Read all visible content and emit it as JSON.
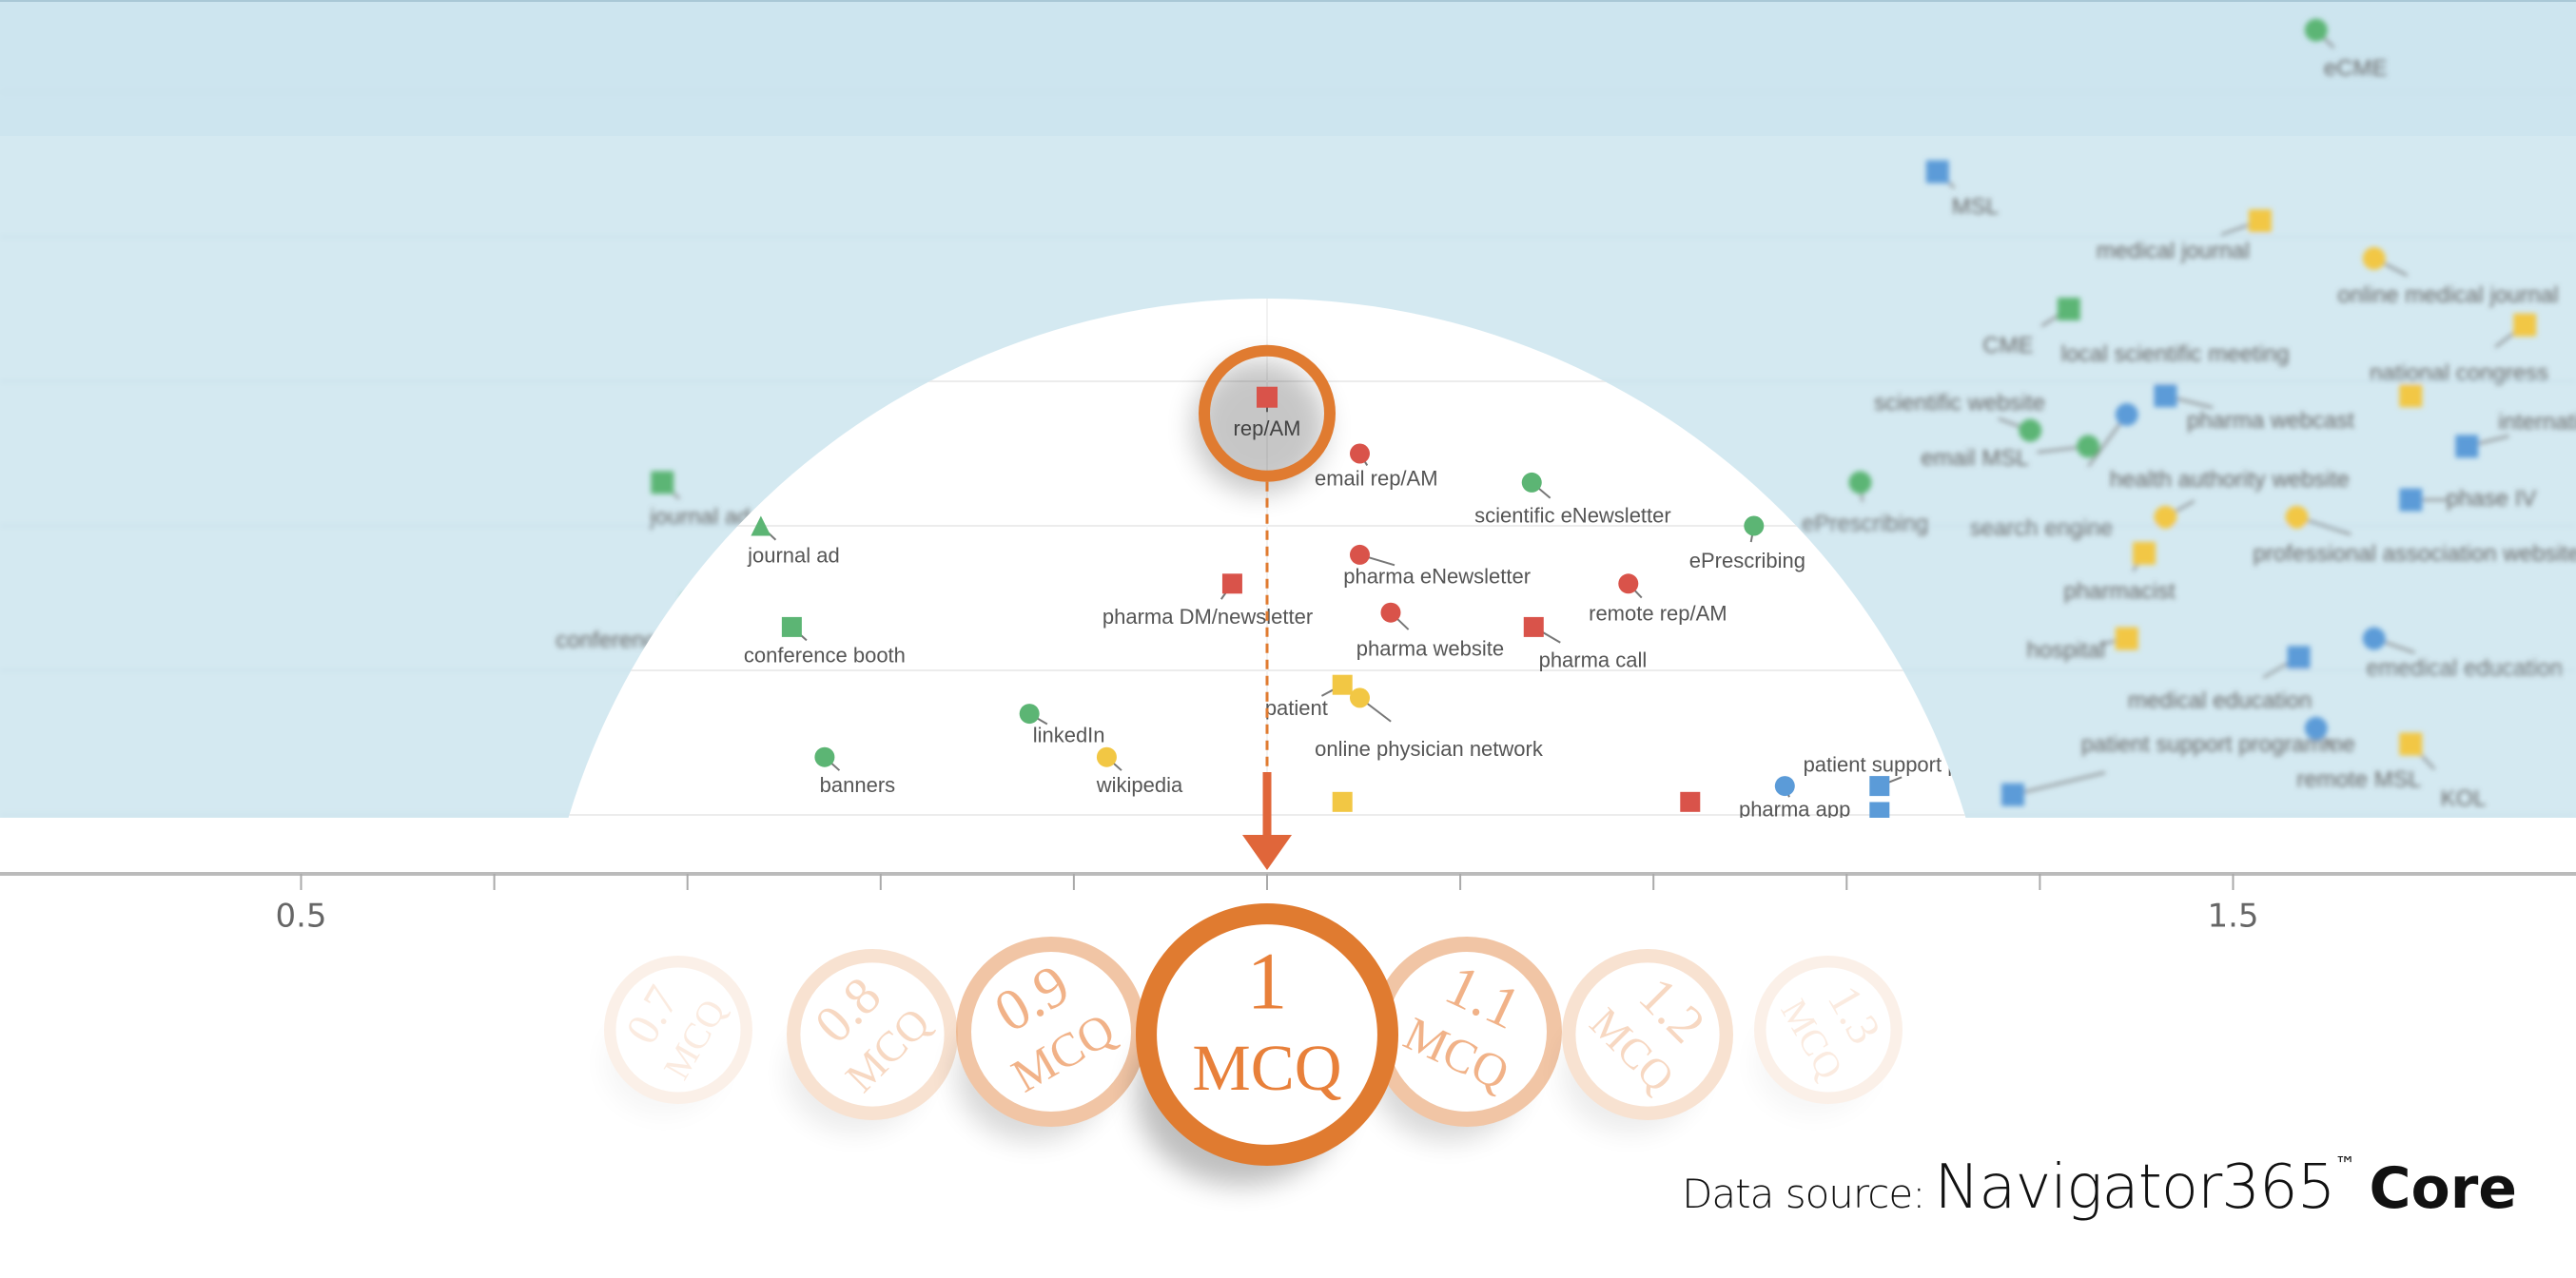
{
  "chart_data": {
    "type": "scatter",
    "x_ticks": [
      0.5,
      0.6,
      0.7,
      0.8,
      0.9,
      1.0,
      1.1,
      1.2,
      1.3,
      1.4,
      1.5
    ],
    "x_tick_labels": [
      {
        "value": 0.5,
        "label": "0.5"
      },
      {
        "value": 1.5,
        "label": "1.5"
      }
    ],
    "gridlines": [
      0,
      1,
      2,
      3,
      4,
      5
    ],
    "colors": {
      "red": "#d9534a",
      "green": "#5cb574",
      "yellow": "#f2c744",
      "blue": "#5b9bd8",
      "accent": "#e07b30",
      "background": "#d4e9f1"
    },
    "highlight": {
      "label": "rep/AM",
      "x": 1.0
    },
    "lens_points": [
      {
        "label": "rep/AM",
        "x": 1.0,
        "y": 2.89,
        "shape": "square",
        "color": "red"
      },
      {
        "label": "email rep/AM",
        "x": 1.048,
        "y": 2.5,
        "shape": "circle",
        "color": "red"
      },
      {
        "label": "scientific eNewsletter",
        "x": 1.137,
        "y": 2.3,
        "shape": "circle",
        "color": "green"
      },
      {
        "label": "ePrescribing",
        "x": 1.252,
        "y": 2.0,
        "shape": "circle",
        "color": "green"
      },
      {
        "label": "journal ad",
        "x": 0.738,
        "y": 2.0,
        "shape": "triangle",
        "color": "green"
      },
      {
        "label": "pharma DM/newsletter",
        "x": 0.982,
        "y": 1.6,
        "shape": "square",
        "color": "red"
      },
      {
        "label": "pharma eNewsletter",
        "x": 1.048,
        "y": 1.8,
        "shape": "circle",
        "color": "red"
      },
      {
        "label": "remote rep/AM",
        "x": 1.187,
        "y": 1.6,
        "shape": "circle",
        "color": "red"
      },
      {
        "label": "pharma website",
        "x": 1.064,
        "y": 1.4,
        "shape": "circle",
        "color": "red"
      },
      {
        "label": "pharma call",
        "x": 1.138,
        "y": 1.3,
        "shape": "square",
        "color": "red"
      },
      {
        "label": "conference booth",
        "x": 0.754,
        "y": 1.3,
        "shape": "square",
        "color": "green"
      },
      {
        "label": "patient",
        "x": 1.039,
        "y": 0.9,
        "shape": "square",
        "color": "yellow"
      },
      {
        "label": "online physician network",
        "x": 1.048,
        "y": 0.81,
        "shape": "circle",
        "color": "yellow"
      },
      {
        "label": "linkedIn",
        "x": 0.877,
        "y": 0.7,
        "shape": "circle",
        "color": "green"
      },
      {
        "label": "wikipedia",
        "x": 0.917,
        "y": 0.4,
        "shape": "circle",
        "color": "yellow"
      },
      {
        "label": "banners",
        "x": 0.771,
        "y": 0.4,
        "shape": "circle",
        "color": "green"
      },
      {
        "label": "pharma app",
        "x": 1.268,
        "y": 0.2,
        "shape": "circle",
        "color": "blue"
      },
      {
        "label": "patient support programme",
        "x": 1.317,
        "y": 0.2,
        "shape": "square",
        "color": "blue"
      },
      {
        "label": "",
        "x": 1.317,
        "y": 0.02,
        "shape": "square",
        "color": "blue"
      },
      {
        "label": "",
        "x": 1.219,
        "y": 0.09,
        "shape": "square",
        "color": "red"
      },
      {
        "label": "",
        "x": 1.039,
        "y": 0.09,
        "shape": "square",
        "color": "yellow"
      },
      {
        "label": "ho",
        "x": 1.336,
        "y": 1.03,
        "shape": "none",
        "color": "blue"
      }
    ],
    "background_points": [
      {
        "label": "eCME",
        "x": 1.543,
        "y": 5.43,
        "shape": "circle",
        "color": "green"
      },
      {
        "label": "MSL",
        "x": 1.347,
        "y": 4.45,
        "shape": "square",
        "color": "blue"
      },
      {
        "label": "medical journal",
        "x": 1.514,
        "y": 4.11,
        "shape": "square",
        "color": "yellow"
      },
      {
        "label": "online medical journal",
        "x": 1.573,
        "y": 3.85,
        "shape": "circle",
        "color": "yellow"
      },
      {
        "label": "CME",
        "x": 1.415,
        "y": 3.5,
        "shape": "square",
        "color": "green"
      },
      {
        "label": "local scientific meeting",
        "x": 1.487,
        "y": 3.18,
        "shape": "none",
        "color": "green"
      },
      {
        "label": "national congress",
        "x": 1.651,
        "y": 3.39,
        "shape": "square",
        "color": "yellow"
      },
      {
        "label": "",
        "x": 1.592,
        "y": 2.9,
        "shape": "square",
        "color": "yellow"
      },
      {
        "label": "scientific website",
        "x": 1.395,
        "y": 2.66,
        "shape": "circle",
        "color": "green"
      },
      {
        "label": "email MSL",
        "x": 1.425,
        "y": 2.55,
        "shape": "circle",
        "color": "green"
      },
      {
        "label": "search engine",
        "x": 1.445,
        "y": 2.77,
        "shape": "circle",
        "color": "blue"
      },
      {
        "label": "pharma webcast",
        "x": 1.465,
        "y": 2.9,
        "shape": "square",
        "color": "blue"
      },
      {
        "label": "international",
        "x": 1.621,
        "y": 2.55,
        "shape": "square",
        "color": "blue"
      },
      {
        "label": "health authority website",
        "x": 1.465,
        "y": 2.06,
        "shape": "circle",
        "color": "yellow"
      },
      {
        "label": "phase IV",
        "x": 1.592,
        "y": 2.18,
        "shape": "square",
        "color": "blue"
      },
      {
        "label": "professional association website",
        "x": 1.533,
        "y": 2.06,
        "shape": "circle",
        "color": "yellow"
      },
      {
        "label": "pharmacist",
        "x": 1.454,
        "y": 1.81,
        "shape": "square",
        "color": "yellow"
      },
      {
        "label": "hospital",
        "x": 1.445,
        "y": 1.22,
        "shape": "square",
        "color": "yellow"
      },
      {
        "label": "emedical education",
        "x": 1.573,
        "y": 1.22,
        "shape": "circle",
        "color": "blue"
      },
      {
        "label": "medical education",
        "x": 1.534,
        "y": 1.09,
        "shape": "square",
        "color": "blue"
      },
      {
        "label": "remote MSL",
        "x": 1.543,
        "y": 0.6,
        "shape": "circle",
        "color": "blue"
      },
      {
        "label": "KOL",
        "x": 1.592,
        "y": 0.49,
        "shape": "square",
        "color": "yellow"
      },
      {
        "label": "patient support programme",
        "x": 1.386,
        "y": 0.14,
        "shape": "square",
        "color": "blue"
      },
      {
        "label": "journal ad",
        "x": 0.687,
        "y": 2.3,
        "shape": "square",
        "color": "green"
      },
      {
        "label": "conference booth",
        "x": 0.703,
        "y": 1.45,
        "shape": "square",
        "color": "green"
      },
      {
        "label": "ePrescribing",
        "x": 1.307,
        "y": 2.3,
        "shape": "circle",
        "color": "green"
      }
    ]
  },
  "selector": {
    "selected": "1",
    "items": [
      {
        "value": "0.7",
        "unit": "MCQ"
      },
      {
        "value": "0.8",
        "unit": "MCQ"
      },
      {
        "value": "0.9",
        "unit": "MCQ"
      },
      {
        "value": "1.1",
        "unit": "MCQ"
      },
      {
        "value": "1.2",
        "unit": "MCQ"
      },
      {
        "value": "1.3",
        "unit": "MCQ"
      },
      {
        "value": "1",
        "unit": "MCQ"
      }
    ]
  },
  "attribution": {
    "prefix": "Data source:",
    "brand": "Navigator365",
    "tm": "™",
    "suffix": "Core"
  }
}
